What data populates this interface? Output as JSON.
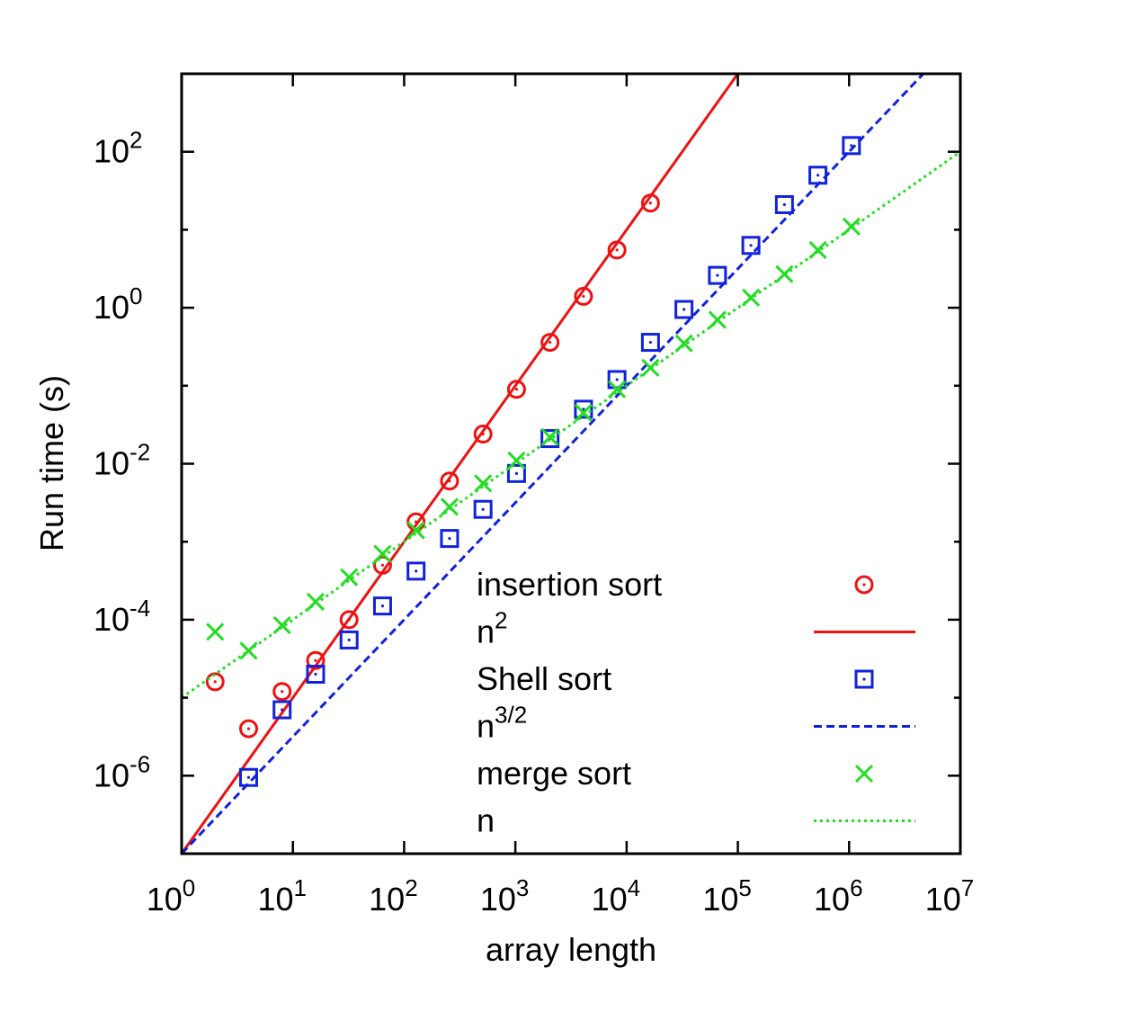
{
  "chart_data": {
    "type": "scatter",
    "xlabel": "array length",
    "ylabel": "Run time (s)",
    "xscale": "log",
    "yscale": "log",
    "xlim": [
      1,
      10000000
    ],
    "ylim": [
      1e-07,
      1000
    ],
    "grid": false,
    "legend_position": "bottom-right",
    "x_tick_labels": [
      {
        "base": "10",
        "exp": "0"
      },
      {
        "base": "10",
        "exp": "1"
      },
      {
        "base": "10",
        "exp": "2"
      },
      {
        "base": "10",
        "exp": "3"
      },
      {
        "base": "10",
        "exp": "4"
      },
      {
        "base": "10",
        "exp": "5"
      },
      {
        "base": "10",
        "exp": "6"
      },
      {
        "base": "10",
        "exp": "7"
      }
    ],
    "y_tick_labels": [
      {
        "base": "10",
        "exp": "-6"
      },
      {
        "base": "10",
        "exp": "-4"
      },
      {
        "base": "10",
        "exp": "-2"
      },
      {
        "base": "10",
        "exp": "0"
      },
      {
        "base": "10",
        "exp": "2"
      }
    ],
    "series": [
      {
        "name": "insertion sort",
        "kind": "points",
        "marker": "circle-dot",
        "color": "#ee1111",
        "points": [
          [
            2,
            1.6e-05
          ],
          [
            4,
            4e-06
          ],
          [
            8,
            1.2e-05
          ],
          [
            16,
            3e-05
          ],
          [
            32,
            0.0001
          ],
          [
            64,
            0.0005
          ],
          [
            128,
            0.0018
          ],
          [
            256,
            0.006
          ],
          [
            512,
            0.024
          ],
          [
            1024,
            0.09
          ],
          [
            2048,
            0.36
          ],
          [
            4096,
            1.4
          ],
          [
            8192,
            5.5
          ],
          [
            16384,
            22
          ]
        ]
      },
      {
        "name": "n",
        "superscript": "2",
        "kind": "line",
        "dash": "solid",
        "color": "#ee1111",
        "slope": 2,
        "coef": 1e-07
      },
      {
        "name": "Shell sort",
        "kind": "points",
        "marker": "square-dot",
        "color": "#1122dd",
        "points": [
          [
            4,
            9.5e-07
          ],
          [
            8,
            7e-06
          ],
          [
            16,
            2e-05
          ],
          [
            32,
            5.5e-05
          ],
          [
            64,
            0.00015
          ],
          [
            128,
            0.00042
          ],
          [
            256,
            0.0011
          ],
          [
            512,
            0.0026
          ],
          [
            1024,
            0.0075
          ],
          [
            2048,
            0.021
          ],
          [
            4096,
            0.05
          ],
          [
            8192,
            0.12
          ],
          [
            16384,
            0.36
          ],
          [
            32768,
            0.95
          ],
          [
            65536,
            2.6
          ],
          [
            131072,
            6.3
          ],
          [
            262144,
            21
          ],
          [
            524288,
            50
          ],
          [
            1048576,
            120
          ]
        ]
      },
      {
        "name": "n",
        "superscript": "3/2",
        "kind": "line",
        "dash": "dashed",
        "color": "#1122dd",
        "slope": 1.5,
        "coef": 1e-07
      },
      {
        "name": "merge sort",
        "kind": "points",
        "marker": "x",
        "color": "#22dd22",
        "points": [
          [
            2,
            7e-05
          ],
          [
            4,
            4e-05
          ],
          [
            8,
            8.5e-05
          ],
          [
            16,
            0.00017
          ],
          [
            32,
            0.00035
          ],
          [
            64,
            0.0007
          ],
          [
            128,
            0.0014
          ],
          [
            256,
            0.0028
          ],
          [
            512,
            0.0056
          ],
          [
            1024,
            0.011
          ],
          [
            2048,
            0.022
          ],
          [
            4096,
            0.045
          ],
          [
            8192,
            0.09
          ],
          [
            16384,
            0.17
          ],
          [
            32768,
            0.35
          ],
          [
            65536,
            0.7
          ],
          [
            131072,
            1.35
          ],
          [
            262144,
            2.7
          ],
          [
            524288,
            5.5
          ],
          [
            1048576,
            11
          ]
        ]
      },
      {
        "name": "n",
        "kind": "line",
        "dash": "dotted",
        "color": "#22dd22",
        "slope": 1,
        "coef": 1e-05
      }
    ]
  }
}
